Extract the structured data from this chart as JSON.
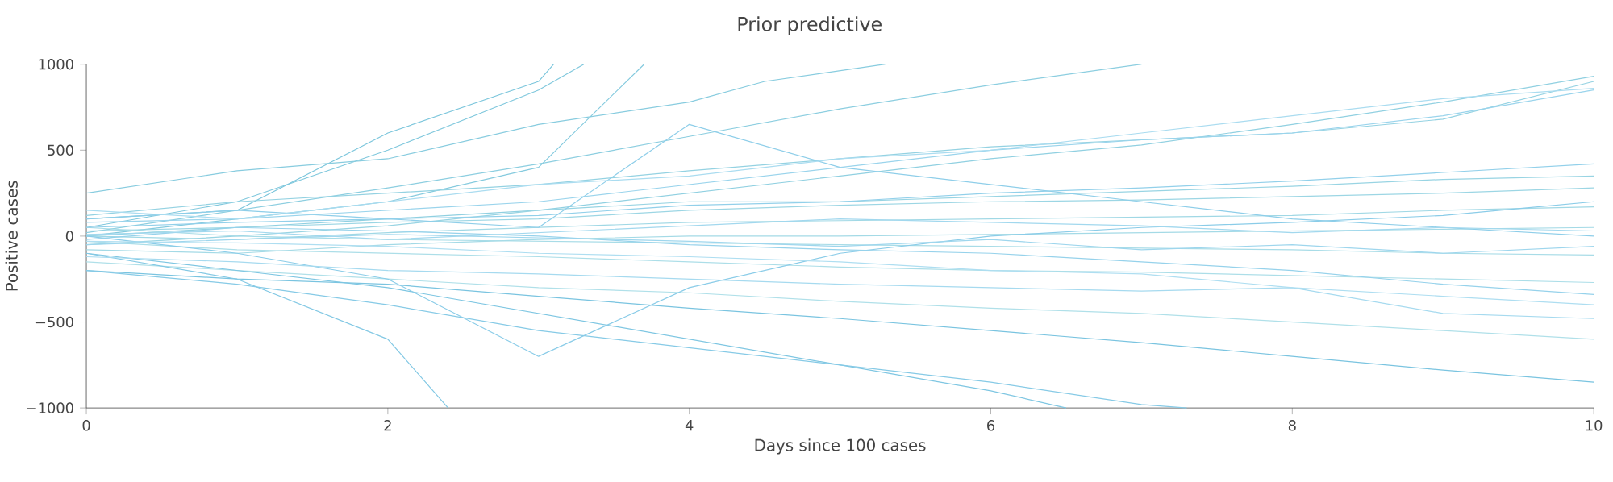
{
  "chart_data": {
    "type": "line",
    "title": "Prior predictive",
    "xlabel": "Days since 100 cases",
    "ylabel": "Positive cases",
    "xlim": [
      0,
      10
    ],
    "ylim": [
      -1000,
      1000
    ],
    "xticks": [
      0,
      2,
      4,
      6,
      8,
      10
    ],
    "yticks": [
      {
        "value": -1000,
        "label": "−1000"
      },
      {
        "value": -500,
        "label": "−500"
      },
      0,
      500,
      1000
    ],
    "series": [
      {
        "color": "#7cc6dc",
        "x": [
          0,
          1,
          2,
          3,
          3.1
        ],
        "values": [
          100,
          150,
          600,
          900,
          1000
        ]
      },
      {
        "color": "#80c8dd",
        "x": [
          0,
          1,
          2,
          3,
          3.3
        ],
        "values": [
          50,
          200,
          500,
          850,
          1000
        ]
      },
      {
        "color": "#84cade",
        "x": [
          0,
          1,
          2,
          3,
          3.7
        ],
        "values": [
          0,
          100,
          200,
          400,
          1000
        ]
      },
      {
        "color": "#88ccdf",
        "x": [
          0,
          1,
          2,
          3,
          4,
          4.5,
          5.3
        ],
        "values": [
          250,
          380,
          450,
          650,
          780,
          900,
          1000
        ]
      },
      {
        "color": "#8ccee0",
        "x": [
          0,
          1,
          2,
          3,
          4,
          5,
          6,
          7
        ],
        "values": [
          20,
          150,
          280,
          420,
          580,
          740,
          880,
          1000
        ]
      },
      {
        "color": "#90d0e1",
        "x": [
          0,
          1,
          2,
          3,
          4,
          5,
          6,
          7,
          8,
          9,
          10
        ],
        "values": [
          0,
          50,
          100,
          150,
          250,
          350,
          450,
          530,
          650,
          780,
          930
        ]
      },
      {
        "color": "#94d2e2",
        "x": [
          0,
          1,
          2,
          3,
          4,
          5,
          6,
          7,
          8,
          9,
          10
        ],
        "values": [
          120,
          200,
          250,
          300,
          380,
          450,
          520,
          560,
          600,
          680,
          900
        ]
      },
      {
        "color": "#98d4e3",
        "x": [
          0,
          1,
          2,
          3,
          4,
          5,
          6,
          7,
          8,
          9,
          10
        ],
        "values": [
          -50,
          0,
          60,
          150,
          200,
          200,
          230,
          260,
          290,
          330,
          350
        ]
      },
      {
        "color": "#9cd6e4",
        "x": [
          0,
          1,
          2,
          3,
          4,
          5,
          6,
          7,
          8,
          9,
          10
        ],
        "values": [
          30,
          50,
          80,
          100,
          150,
          180,
          200,
          210,
          230,
          250,
          280
        ]
      },
      {
        "color": "#a0d8e5",
        "x": [
          0,
          1,
          2,
          3,
          4,
          5,
          6,
          7,
          8,
          9,
          10
        ],
        "values": [
          0,
          -20,
          20,
          50,
          80,
          90,
          100,
          110,
          120,
          150,
          170
        ]
      },
      {
        "color": "#a4dae6",
        "x": [
          0,
          1,
          2,
          3,
          4,
          5,
          6,
          7,
          8,
          9,
          10
        ],
        "values": [
          -80,
          -100,
          -50,
          -20,
          0,
          0,
          10,
          20,
          30,
          40,
          50
        ]
      },
      {
        "color": "#a8dce7",
        "x": [
          0,
          1,
          2,
          3,
          4,
          5,
          6,
          7,
          8,
          9,
          10
        ],
        "values": [
          50,
          0,
          -20,
          -30,
          -40,
          -50,
          -60,
          -70,
          -80,
          -100,
          -110
        ]
      },
      {
        "color": "#acdee8",
        "x": [
          0,
          1,
          2,
          3,
          4,
          5,
          6,
          7,
          8,
          9,
          10
        ],
        "values": [
          -30,
          -80,
          -100,
          -120,
          -150,
          -180,
          -200,
          -210,
          -230,
          -250,
          -270
        ]
      },
      {
        "color": "#b0e0e9",
        "x": [
          0,
          1,
          2,
          3,
          4,
          5,
          6,
          7,
          8,
          9,
          10
        ],
        "values": [
          -150,
          -200,
          -250,
          -300,
          -330,
          -380,
          -420,
          -450,
          -500,
          -550,
          -600
        ]
      },
      {
        "color": "#7ac4e0",
        "x": [
          0,
          1,
          2,
          3,
          4,
          5,
          6,
          7,
          8,
          9,
          10
        ],
        "values": [
          -200,
          -250,
          -280,
          -350,
          -420,
          -480,
          -550,
          -620,
          -700,
          -780,
          -850
        ]
      },
      {
        "color": "#7ec6e2",
        "x": [
          0,
          1,
          2,
          3,
          4,
          5,
          6,
          6.5
        ],
        "values": [
          -100,
          -200,
          -300,
          -450,
          -600,
          -750,
          -900,
          -1000
        ]
      },
      {
        "color": "#82c8e4",
        "x": [
          0,
          1,
          2,
          2.4
        ],
        "values": [
          -100,
          -250,
          -600,
          -1000
        ]
      },
      {
        "color": "#86cae6",
        "x": [
          0,
          1,
          2,
          3,
          4,
          5,
          6,
          7,
          7.3
        ],
        "values": [
          -200,
          -280,
          -400,
          -550,
          -650,
          -750,
          -850,
          -980,
          -1000
        ]
      },
      {
        "color": "#8acce8",
        "x": [
          0,
          1,
          2,
          3,
          4,
          5,
          6,
          7,
          8,
          9,
          10
        ],
        "values": [
          0,
          -100,
          -250,
          -700,
          -300,
          -100,
          0,
          50,
          80,
          120,
          200
        ]
      },
      {
        "color": "#8ecee9",
        "x": [
          0,
          1,
          2,
          3,
          4,
          5,
          6,
          7,
          8,
          9,
          10
        ],
        "values": [
          100,
          150,
          100,
          50,
          650,
          400,
          300,
          200,
          100,
          50,
          0
        ]
      },
      {
        "color": "#92d0ea",
        "x": [
          0,
          1,
          2,
          3,
          4,
          5,
          6,
          7,
          8,
          9,
          10
        ],
        "values": [
          50,
          80,
          100,
          120,
          180,
          200,
          250,
          280,
          320,
          370,
          420
        ]
      },
      {
        "color": "#96d2eb",
        "x": [
          0,
          1,
          2,
          3,
          4,
          5,
          6,
          7,
          8,
          9,
          10
        ],
        "values": [
          -20,
          50,
          30,
          0,
          -50,
          -80,
          -100,
          -150,
          -200,
          -280,
          -340
        ]
      },
      {
        "color": "#9ad4ec",
        "x": [
          0,
          1,
          2,
          3,
          4,
          5,
          6,
          7,
          8,
          9,
          10
        ],
        "values": [
          80,
          100,
          150,
          200,
          300,
          400,
          500,
          560,
          600,
          700,
          850
        ]
      },
      {
        "color": "#9ed6ed",
        "x": [
          0,
          1,
          2,
          3,
          4,
          5,
          6,
          7,
          8,
          9,
          10
        ],
        "values": [
          -50,
          -20,
          10,
          -10,
          -30,
          -60,
          -20,
          -80,
          -50,
          -100,
          -60
        ]
      },
      {
        "color": "#a2d8ee",
        "x": [
          0,
          1,
          2,
          3,
          4,
          5,
          6,
          7,
          8,
          9,
          10
        ],
        "values": [
          10,
          30,
          -20,
          20,
          60,
          100,
          80,
          60,
          20,
          50,
          30
        ]
      },
      {
        "color": "#a6daef",
        "x": [
          0,
          1,
          2,
          3,
          4,
          5,
          6,
          7,
          8,
          9,
          10
        ],
        "values": [
          -120,
          -150,
          -200,
          -220,
          -250,
          -280,
          -300,
          -320,
          -300,
          -450,
          -480
        ]
      },
      {
        "color": "#aadcf0",
        "x": [
          0,
          1,
          2,
          3,
          4,
          5,
          6,
          7,
          8,
          9,
          10
        ],
        "values": [
          150,
          100,
          200,
          300,
          350,
          450,
          500,
          600,
          700,
          800,
          860
        ]
      },
      {
        "color": "#aedef1",
        "x": [
          0,
          1,
          2,
          3,
          4,
          5,
          6,
          7,
          8,
          9,
          10
        ],
        "values": [
          -30,
          -40,
          -60,
          -100,
          -120,
          -150,
          -200,
          -220,
          -300,
          -350,
          -400
        ]
      }
    ]
  }
}
